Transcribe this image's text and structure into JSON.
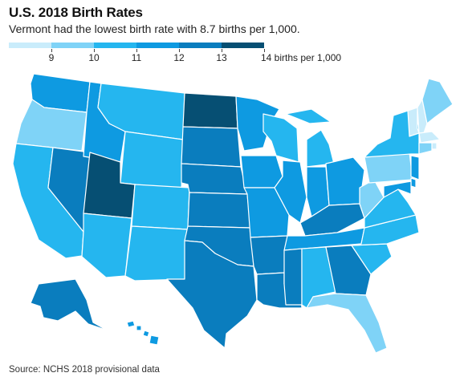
{
  "title": "U.S. 2018 Birth Rates",
  "subtitle": "Vermont had the lowest birth rate with 8.7 births per 1,000.",
  "legend": {
    "bins": [
      {
        "color": "#c9ecfb"
      },
      {
        "color": "#7fd3f7"
      },
      {
        "color": "#25b6ef"
      },
      {
        "color": "#0e9ae1"
      },
      {
        "color": "#0a7dbe"
      },
      {
        "color": "#064f73"
      }
    ],
    "labels": [
      "9",
      "10",
      "11",
      "12",
      "13",
      "14 births per 1,000"
    ]
  },
  "palette": {
    "very_light": "#c9ecfb",
    "light": "#7fd3f7",
    "mid": "#25b6ef",
    "mid_dark": "#0e9ae1",
    "dark": "#0a7dbe",
    "darkest": "#064f73"
  },
  "map": {
    "states": {
      "WA": "mid_dark",
      "OR": "light",
      "CA": "mid",
      "NV": "dark",
      "ID": "mid_dark",
      "MT": "mid",
      "WY": "mid",
      "UT": "darkest",
      "AZ": "mid",
      "CO": "mid",
      "NM": "mid",
      "ND": "darkest",
      "SD": "dark",
      "NE": "dark",
      "KS": "dark",
      "OK": "dark",
      "TX": "dark",
      "MN": "mid_dark",
      "IA": "mid_dark",
      "MO": "mid_dark",
      "AR": "dark",
      "LA": "dark",
      "WI": "mid",
      "IL": "mid_dark",
      "MI": "mid",
      "IN": "mid_dark",
      "OH": "mid_dark",
      "KY": "dark",
      "TN": "mid_dark",
      "MS": "dark",
      "AL": "mid",
      "GA": "dark",
      "FL": "light",
      "SC": "mid",
      "NC": "mid",
      "VA": "mid",
      "WV": "light",
      "PA": "light",
      "NY": "mid",
      "VT": "very_light",
      "NH": "very_light",
      "ME": "light",
      "MA": "very_light",
      "RI": "very_light",
      "CT": "light",
      "NJ": "mid_dark",
      "DE": "mid_dark",
      "MD": "mid_dark",
      "AK": "dark",
      "HI": "mid_dark"
    }
  },
  "source": "Source: NCHS 2018 provisional data"
}
